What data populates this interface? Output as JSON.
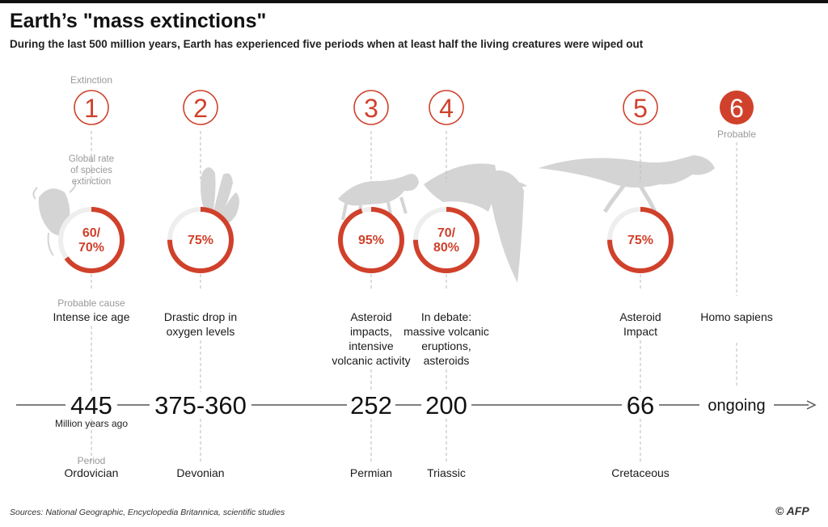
{
  "title": "Earth’s \"mass extinctions\"",
  "subtitle": "During the last 500 million years, Earth has experienced five periods when at least half the living creatures were wiped out",
  "labels": {
    "extinction": "Extinction",
    "rate_lines": [
      "Global rate",
      "of species",
      "extinction"
    ],
    "cause": "Probable cause",
    "time_unit": "Million years ago",
    "period": "Period",
    "probable": "Probable"
  },
  "footer": {
    "sources": "Sources: National Geographic, Encyclopedia Britannica, scientific studies",
    "credit": "© AFP"
  },
  "colors": {
    "accent": "#d0412b",
    "track": "#eeeeee",
    "axis": "#555555",
    "guide": "#bbbbbb",
    "fossil": "#d4d4d4"
  },
  "chart_data": {
    "type": "timeline",
    "axis": {
      "direction": "past-to-present",
      "unit": "Million years ago"
    },
    "events": [
      {
        "number": "1",
        "rate_text": "60/ 70%",
        "rate_value": 65,
        "cause": "Intense ice age",
        "time": "445",
        "period": "Ordovician",
        "status": "confirmed",
        "fossil": "trilobite-icon"
      },
      {
        "number": "2",
        "rate_text": "75%",
        "rate_value": 75,
        "cause": "Drastic drop in oxygen levels",
        "time": "375-360",
        "period": "Devonian",
        "status": "confirmed",
        "fossil": "sea-lily-icon"
      },
      {
        "number": "3",
        "rate_text": "95%",
        "rate_value": 95,
        "cause": "Asteroid impacts, intensive volcanic activity",
        "time": "252",
        "period": "Permian",
        "status": "confirmed",
        "fossil": "reptile-skeleton-icon"
      },
      {
        "number": "4",
        "rate_text": "70/ 80%",
        "rate_value": 75,
        "cause": "In debate: massive volcanic eruptions, asteroids",
        "time": "200",
        "period": "Triassic",
        "status": "confirmed",
        "fossil": "pterosaur-icon"
      },
      {
        "number": "5",
        "rate_text": "75%",
        "rate_value": 75,
        "cause": "Asteroid Impact",
        "time": "66",
        "period": "Cretaceous",
        "status": "confirmed",
        "fossil": "dinosaur-skeleton-icon"
      },
      {
        "number": "6",
        "rate_text": "",
        "rate_value": null,
        "cause": "Homo sapiens",
        "time": "ongoing",
        "period": "",
        "status": "probable",
        "fossil": ""
      }
    ]
  }
}
